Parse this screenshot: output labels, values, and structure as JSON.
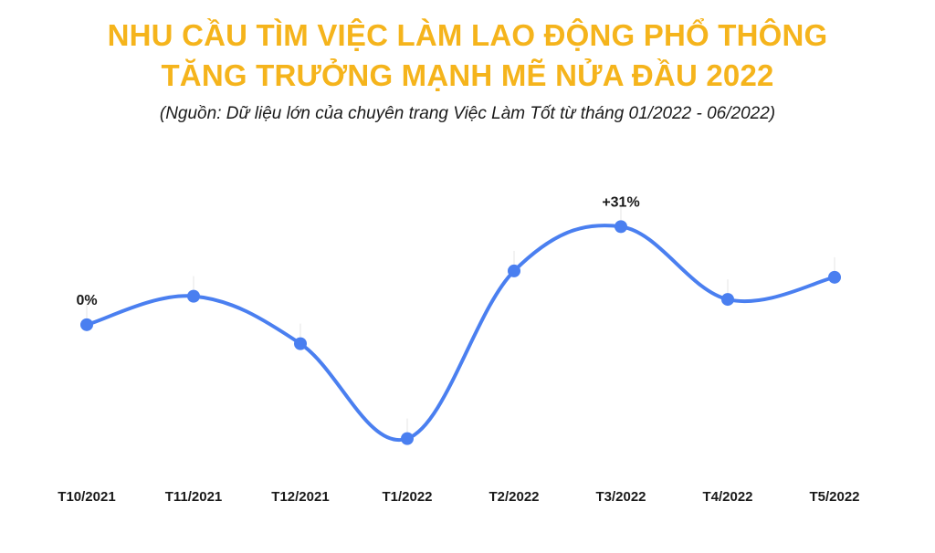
{
  "title_line1": "NHU CẦU TÌM VIỆC LÀM LAO ĐỘNG PHỔ THÔNG",
  "title_line2": "TĂNG TRƯỞNG MẠNH MẼ NỬA ĐẦU 2022",
  "subtitle": "(Nguồn: Dữ liệu lớn của chuyên trang Việc Làm Tốt từ tháng 01/2022 - 06/2022)",
  "colors": {
    "title": "#f5b41c",
    "line": "#4a7ff0",
    "text": "#1a1a1a"
  },
  "chart_data": {
    "type": "line",
    "categories": [
      "T10/2021",
      "T11/2021",
      "T12/2021",
      "T1/2022",
      "T2/2022",
      "T3/2022",
      "T4/2022",
      "T5/2022"
    ],
    "values": [
      0,
      9,
      -6,
      -36,
      17,
      31,
      8,
      15
    ],
    "ylim": [
      -40,
      35
    ],
    "annotations": [
      {
        "index": 0,
        "text": "0%"
      },
      {
        "index": 5,
        "text": "+31%"
      }
    ],
    "grid": false,
    "smooth": true
  }
}
